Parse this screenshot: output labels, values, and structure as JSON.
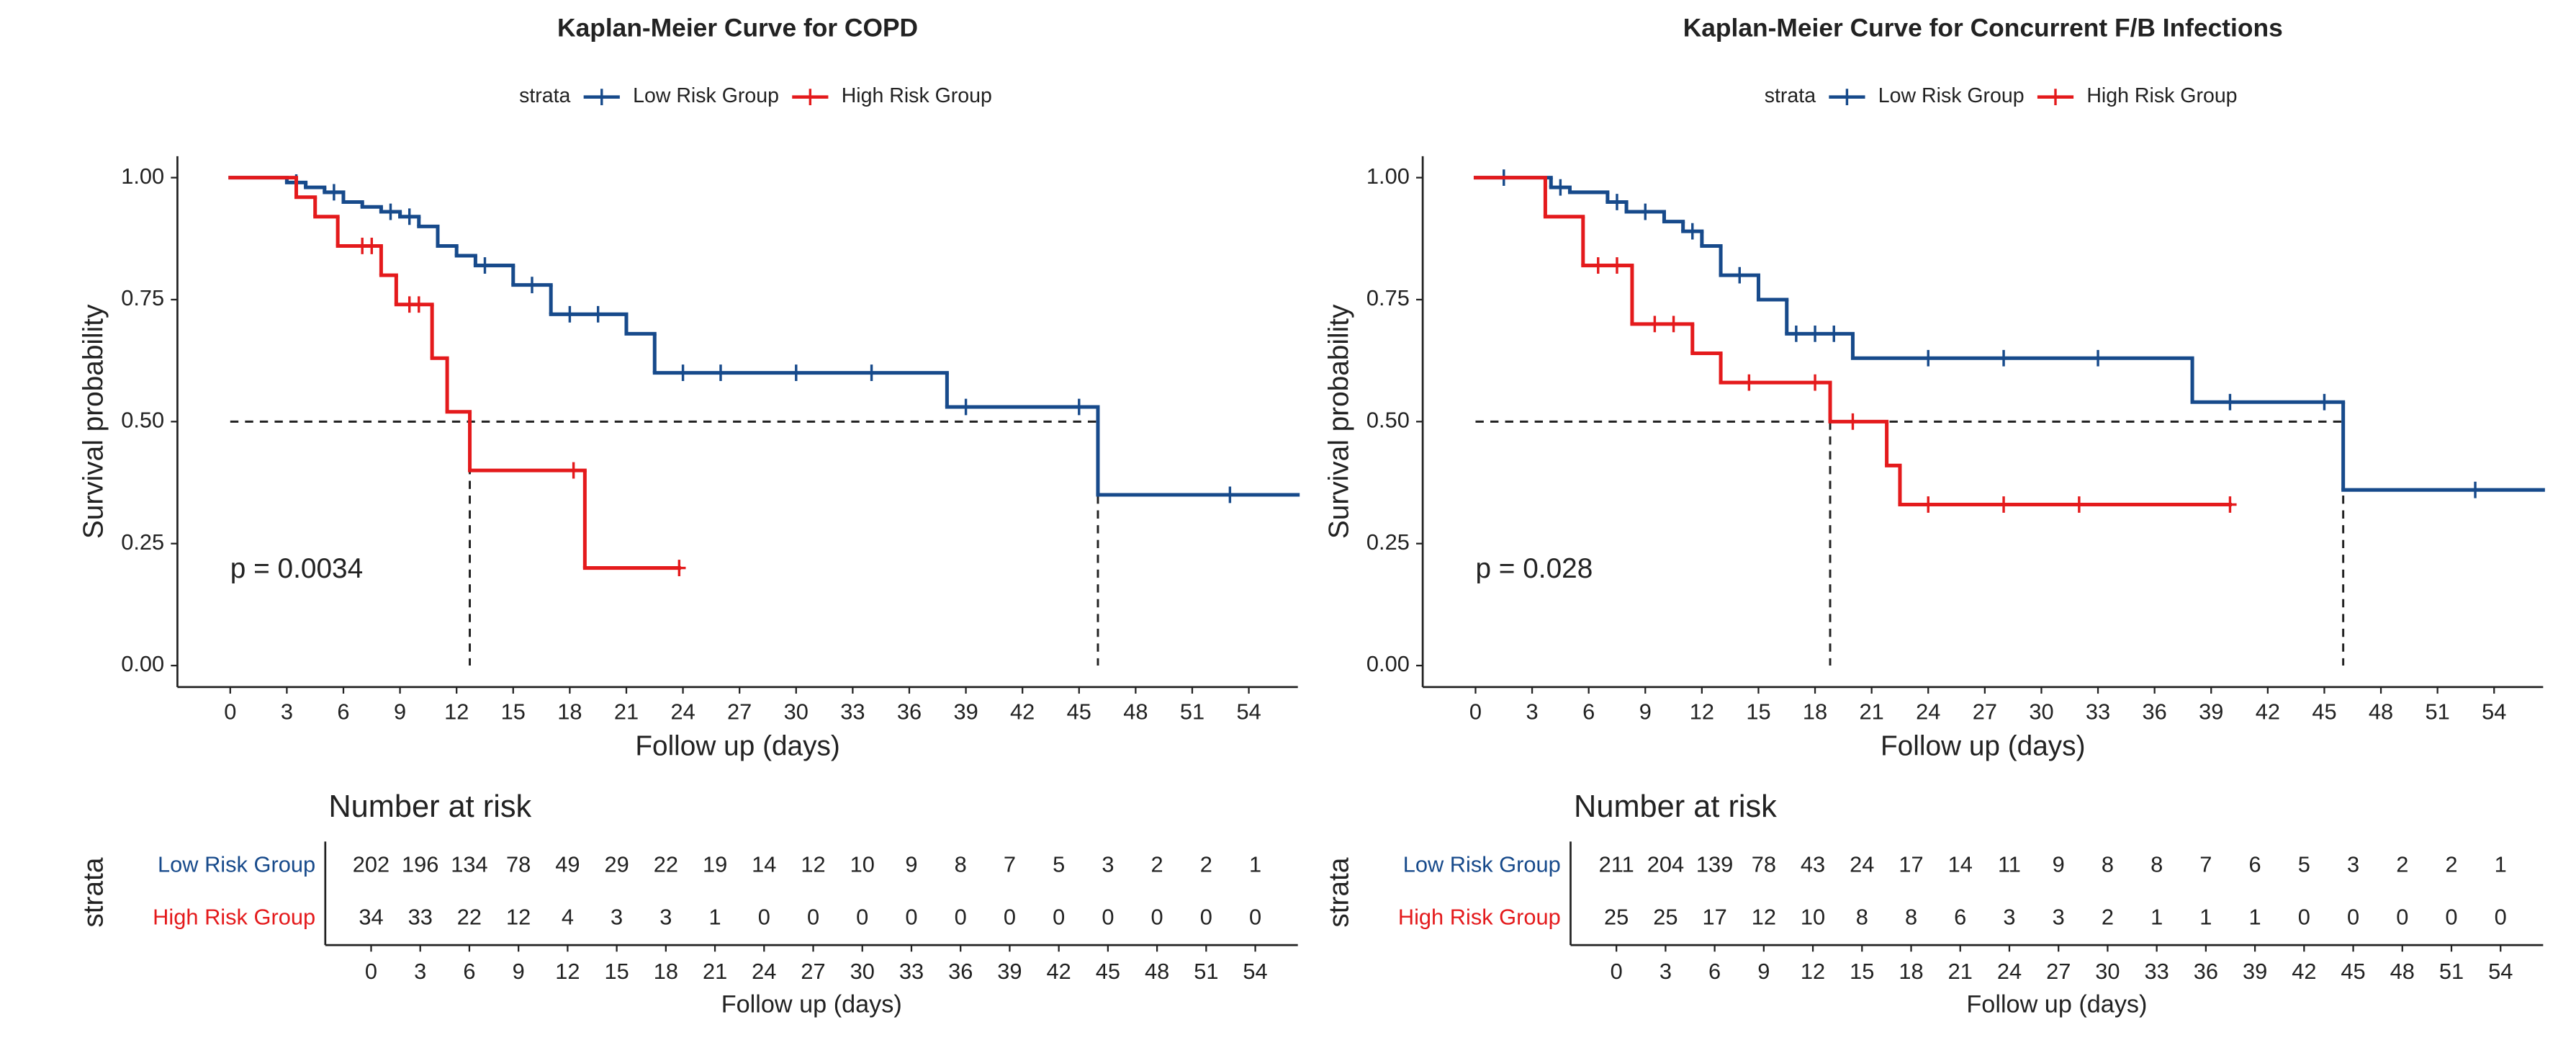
{
  "chart_data": [
    {
      "type": "km",
      "title": "Kaplan-Meier Curve for COPD",
      "legend_title": "strata",
      "xlabel": "Follow up (days)",
      "ylabel": "Survival probability",
      "annotation": "p = 0.0034",
      "xlim": [
        -2.8,
        56.6
      ],
      "ylim": [
        -0.044,
        1.044
      ],
      "xticks": [
        0,
        3,
        6,
        9,
        12,
        15,
        18,
        21,
        24,
        27,
        30,
        33,
        36,
        39,
        42,
        45,
        48,
        51,
        54
      ],
      "yticks": [
        {
          "value": 0,
          "label": "0.00"
        },
        {
          "value": 0.25,
          "label": "0.25"
        },
        {
          "value": 0.5,
          "label": "0.50"
        },
        {
          "value": 0.75,
          "label": "0.75"
        },
        {
          "value": 1,
          "label": "1.00"
        }
      ],
      "median_y": 0.5,
      "series": [
        {
          "name": "Low Risk Group",
          "color": "#174a8b",
          "median": 46,
          "x": [
            0,
            3,
            4,
            5,
            6,
            7,
            8,
            9,
            10,
            11,
            12,
            13,
            15,
            17,
            21,
            22.5,
            38,
            46,
            56.6
          ],
          "y": [
            1,
            0.99,
            0.98,
            0.97,
            0.95,
            0.94,
            0.93,
            0.92,
            0.9,
            0.86,
            0.84,
            0.82,
            0.78,
            0.72,
            0.68,
            0.6,
            0.53,
            0.35,
            0.35
          ],
          "censor_x": [
            3.5,
            5.5,
            8.5,
            9.5,
            13.5,
            16,
            18,
            19.5,
            24,
            26,
            30,
            34,
            39,
            45,
            53
          ],
          "censor_y": [
            0.99,
            0.97,
            0.93,
            0.92,
            0.82,
            0.78,
            0.72,
            0.72,
            0.6,
            0.6,
            0.6,
            0.6,
            0.53,
            0.53,
            0.35
          ]
        },
        {
          "name": "High Risk Group",
          "color": "#e41a1c",
          "median": 12.7,
          "x": [
            0,
            3.5,
            4.5,
            5.7,
            8,
            8.8,
            10.7,
            11.5,
            12.7,
            18.8,
            23.8
          ],
          "y": [
            1,
            0.96,
            0.92,
            0.86,
            0.8,
            0.74,
            0.63,
            0.52,
            0.4,
            0.2,
            0.2
          ],
          "censor_x": [
            7,
            7.5,
            9.5,
            10,
            18.2,
            23.8
          ],
          "censor_y": [
            0.86,
            0.86,
            0.74,
            0.74,
            0.4,
            0.2
          ]
        }
      ],
      "risk_table": {
        "title": "Number at risk",
        "ylabel": "strata",
        "xlabel": "Follow up (days)",
        "counts": [
          [
            202,
            196,
            134,
            78,
            49,
            29,
            22,
            19,
            14,
            12,
            10,
            9,
            8,
            7,
            5,
            3,
            2,
            2,
            1
          ],
          [
            34,
            33,
            22,
            12,
            4,
            3,
            3,
            1,
            0,
            0,
            0,
            0,
            0,
            0,
            0,
            0,
            0,
            0,
            0
          ]
        ]
      }
    },
    {
      "type": "km",
      "title": "Kaplan-Meier Curve for Concurrent F/B Infections",
      "legend_title": "strata",
      "xlabel": "Follow up (days)",
      "ylabel": "Survival probability",
      "annotation": "p = 0.028",
      "xlim": [
        -2.8,
        56.6
      ],
      "ylim": [
        -0.044,
        1.044
      ],
      "xticks": [
        0,
        3,
        6,
        9,
        12,
        15,
        18,
        21,
        24,
        27,
        30,
        33,
        36,
        39,
        42,
        45,
        48,
        51,
        54
      ],
      "yticks": [
        {
          "value": 0,
          "label": "0.00"
        },
        {
          "value": 0.25,
          "label": "0.25"
        },
        {
          "value": 0.5,
          "label": "0.50"
        },
        {
          "value": 0.75,
          "label": "0.75"
        },
        {
          "value": 1,
          "label": "1.00"
        }
      ],
      "median_y": 0.5,
      "series": [
        {
          "name": "Low Risk Group",
          "color": "#174a8b",
          "median": 46,
          "x": [
            0,
            4,
            5,
            7,
            8,
            10,
            11,
            12,
            13,
            15,
            16.5,
            20,
            38,
            46,
            56.6
          ],
          "y": [
            1,
            0.98,
            0.97,
            0.95,
            0.93,
            0.91,
            0.89,
            0.86,
            0.8,
            0.75,
            0.68,
            0.63,
            0.54,
            0.36,
            0.36
          ],
          "censor_x": [
            1.5,
            4.5,
            7.5,
            9,
            11.5,
            14,
            17,
            18,
            19,
            24,
            28,
            33,
            40,
            45,
            53
          ],
          "censor_y": [
            1,
            0.98,
            0.95,
            0.93,
            0.89,
            0.8,
            0.68,
            0.68,
            0.68,
            0.63,
            0.63,
            0.63,
            0.54,
            0.54,
            0.36
          ]
        },
        {
          "name": "High Risk Group",
          "color": "#e41a1c",
          "median": 18.8,
          "x": [
            0,
            3.7,
            5.7,
            8.3,
            11.5,
            13,
            18.8,
            21.8,
            22.5,
            40
          ],
          "y": [
            1,
            0.92,
            0.82,
            0.7,
            0.64,
            0.58,
            0.5,
            0.41,
            0.33,
            0.33
          ],
          "censor_x": [
            6.5,
            7.5,
            9.5,
            10.5,
            14.5,
            18,
            20,
            24,
            28,
            32,
            40
          ],
          "censor_y": [
            0.82,
            0.82,
            0.7,
            0.7,
            0.58,
            0.58,
            0.5,
            0.33,
            0.33,
            0.33,
            0.33
          ]
        }
      ],
      "risk_table": {
        "title": "Number at risk",
        "ylabel": "strata",
        "xlabel": "Follow up (days)",
        "counts": [
          [
            211,
            204,
            139,
            78,
            43,
            24,
            17,
            14,
            11,
            9,
            8,
            8,
            7,
            6,
            5,
            3,
            2,
            2,
            1
          ],
          [
            25,
            25,
            17,
            12,
            10,
            8,
            8,
            6,
            3,
            3,
            2,
            1,
            1,
            1,
            0,
            0,
            0,
            0,
            0
          ]
        ]
      }
    }
  ]
}
